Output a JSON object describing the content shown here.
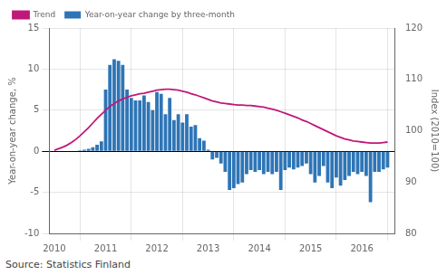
{
  "chart_data": {
    "type": "bar",
    "y_label": "Year-on-year change, %",
    "y2_label": "Index (2010=100)",
    "annotations": [
      "Source: Statistics Finland"
    ],
    "series": [
      {
        "name": "Trend",
        "type": "line",
        "color": "#c0187a",
        "axis": "y2",
        "x": [
          2010.0,
          2010.083,
          2010.167,
          2010.25,
          2010.333,
          2010.417,
          2010.5,
          2010.583,
          2010.667,
          2010.75,
          2010.833,
          2010.917,
          2011.0,
          2011.083,
          2011.167,
          2011.25,
          2011.333,
          2011.417,
          2011.5,
          2011.583,
          2011.667,
          2011.75,
          2011.833,
          2011.917,
          2012.0,
          2012.083,
          2012.167,
          2012.25,
          2012.333,
          2012.417,
          2012.5,
          2012.583,
          2012.667,
          2012.75,
          2012.833,
          2012.917,
          2013.0,
          2013.083,
          2013.167,
          2013.25,
          2013.333,
          2013.417,
          2013.5,
          2013.583,
          2013.667,
          2013.75,
          2013.833,
          2013.917,
          2014.0,
          2014.083,
          2014.167,
          2014.25,
          2014.333,
          2014.417,
          2014.5,
          2014.583,
          2014.667,
          2014.75,
          2014.833,
          2014.917,
          2015.0,
          2015.083,
          2015.167,
          2015.25,
          2015.333,
          2015.417,
          2015.5,
          2015.583,
          2015.667,
          2015.75,
          2015.833,
          2015.917,
          2016.0,
          2016.083,
          2016.167,
          2016.25,
          2016.333,
          2016.417,
          2016.5
        ],
        "values": [
          96.2,
          96.5,
          96.8,
          97.2,
          97.7,
          98.3,
          99.0,
          99.8,
          100.6,
          101.5,
          102.4,
          103.2,
          104.0,
          104.7,
          105.3,
          105.8,
          106.2,
          106.5,
          106.8,
          107.0,
          107.2,
          107.3,
          107.5,
          107.7,
          107.9,
          108.0,
          108.1,
          108.1,
          108.0,
          107.9,
          107.7,
          107.5,
          107.2,
          107.0,
          106.7,
          106.4,
          106.1,
          105.8,
          105.6,
          105.4,
          105.3,
          105.2,
          105.1,
          105.0,
          105.0,
          104.9,
          104.9,
          104.8,
          104.7,
          104.6,
          104.4,
          104.2,
          104.0,
          103.7,
          103.4,
          103.1,
          102.8,
          102.5,
          102.1,
          101.8,
          101.4,
          101.0,
          100.6,
          100.2,
          99.8,
          99.4,
          99.0,
          98.7,
          98.4,
          98.2,
          98.0,
          97.9,
          97.8,
          97.7,
          97.6,
          97.6,
          97.6,
          97.7,
          97.8
        ]
      },
      {
        "name": "Year-on-year change by three-month",
        "type": "bar",
        "color": "#2e75b6",
        "x": [
          2010.083,
          2010.167,
          2010.25,
          2010.333,
          2010.417,
          2010.5,
          2010.583,
          2010.667,
          2010.75,
          2010.833,
          2010.917,
          2011.0,
          2011.083,
          2011.167,
          2011.25,
          2011.333,
          2011.417,
          2011.5,
          2011.583,
          2011.667,
          2011.75,
          2011.833,
          2011.917,
          2012.0,
          2012.083,
          2012.167,
          2012.25,
          2012.333,
          2012.417,
          2012.5,
          2012.583,
          2012.667,
          2012.75,
          2012.833,
          2012.917,
          2013.0,
          2013.083,
          2013.167,
          2013.25,
          2013.333,
          2013.417,
          2013.5,
          2013.583,
          2013.667,
          2013.75,
          2013.833,
          2013.917,
          2014.0,
          2014.083,
          2014.167,
          2014.25,
          2014.333,
          2014.417,
          2014.5,
          2014.583,
          2014.667,
          2014.75,
          2014.833,
          2014.917,
          2015.0,
          2015.083,
          2015.167,
          2015.25,
          2015.333,
          2015.417,
          2015.5,
          2015.583,
          2015.667,
          2015.75,
          2015.833,
          2015.917,
          2016.0,
          2016.083,
          2016.167,
          2016.25,
          2016.333,
          2016.417,
          2016.5
        ],
        "values": [
          0.0,
          0.0,
          0.0,
          0.0,
          0.0,
          0.1,
          0.2,
          0.3,
          0.5,
          0.8,
          1.2,
          7.5,
          10.5,
          11.2,
          11.0,
          10.5,
          7.5,
          6.5,
          6.2,
          6.2,
          6.8,
          6.0,
          5.0,
          7.2,
          7.0,
          4.5,
          6.5,
          3.8,
          4.5,
          3.5,
          4.5,
          3.0,
          3.2,
          1.6,
          1.3,
          0.2,
          -1.0,
          -0.8,
          -1.5,
          -2.5,
          -4.7,
          -4.5,
          -4.0,
          -3.8,
          -2.8,
          -2.3,
          -2.5,
          -2.3,
          -2.8,
          -2.5,
          -2.8,
          -2.5,
          -4.7,
          -2.3,
          -2.0,
          -2.2,
          -2.0,
          -1.8,
          -1.5,
          -2.8,
          -3.8,
          -3.0,
          -1.8,
          -3.8,
          -4.5,
          -3.2,
          -4.2,
          -3.5,
          -3.0,
          -2.5,
          -2.8,
          -2.5,
          -3.0,
          -6.2,
          -2.5,
          -2.5,
          -2.2,
          -2.0
        ]
      }
    ],
    "xlim": [
      2009.9,
      2016.65
    ],
    "xticks": [
      2010,
      2011,
      2012,
      2013,
      2014,
      2015,
      2016
    ],
    "ylim": [
      -10,
      15
    ],
    "yticks": [
      -10,
      -5,
      0,
      5,
      10,
      15
    ],
    "y2lim": [
      80,
      120
    ],
    "y2ticks": [
      80,
      90,
      100,
      110,
      120
    ],
    "grid": true,
    "legend": "upper left"
  }
}
